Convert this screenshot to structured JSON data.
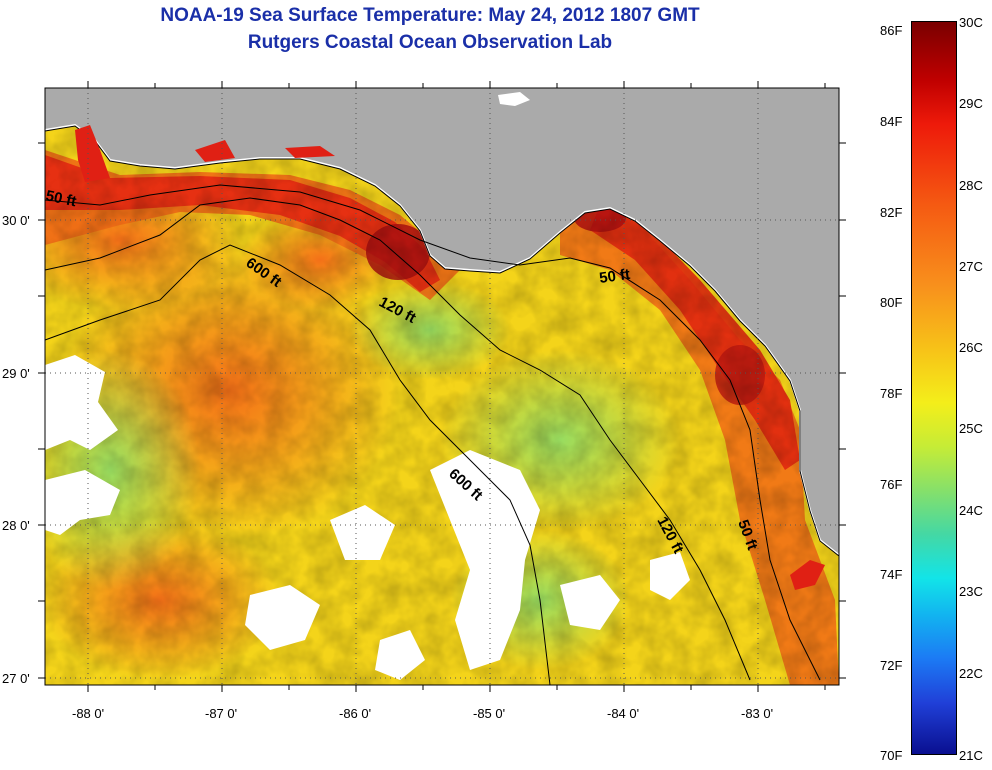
{
  "title_line1": "NOAA-19 Sea Surface Temperature:  May 24, 2012 1807 GMT",
  "title_line2": "Rutgers Coastal Ocean Observation Lab",
  "map": {
    "lon_labels": [
      "-88 0'",
      "-87 0'",
      "-86 0'",
      "-85 0'",
      "-84 0'",
      "-83 0'"
    ],
    "lat_labels": [
      "30 0'",
      "29 0'",
      "28 0'",
      "27 0'"
    ],
    "depth_labels": [
      "50 ft",
      "600 ft",
      "120 ft",
      "50 ft",
      "600 ft",
      "120 ft",
      "50 ft"
    ],
    "colors": {
      "land": "#aaaaaa",
      "cloud": "#ffffff",
      "warm_coast": "#e02010",
      "hot_core": "#a81010",
      "orange": "#f47a18",
      "yellow": "#f4e81a",
      "green": "#a8e050"
    }
  },
  "colorbar": {
    "fahrenheit_labels": [
      "86F",
      "84F",
      "82F",
      "80F",
      "78F",
      "76F",
      "74F",
      "72F",
      "70F"
    ],
    "celsius_labels": [
      "30C",
      "29C",
      "28C",
      "27C",
      "26C",
      "25C",
      "24C",
      "23C",
      "22C",
      "21C"
    ]
  }
}
